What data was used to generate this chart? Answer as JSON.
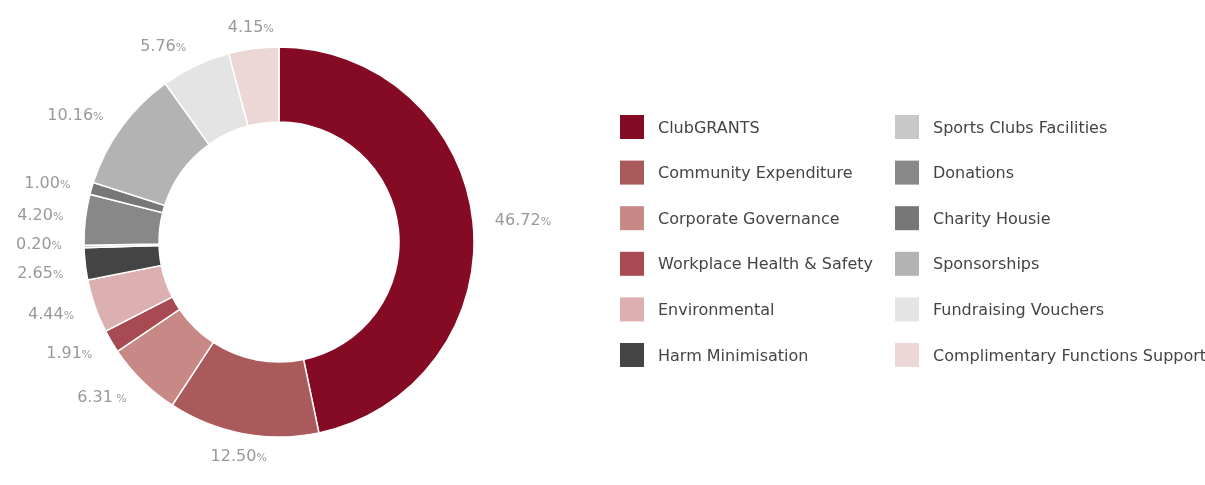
{
  "chart_data": {
    "type": "donut",
    "categories": [
      "ClubGRANTS",
      "Community Expenditure",
      "Corporate Governance",
      "Workplace Health & Safety",
      "Environmental",
      "Harm Minimisation",
      "Sports Clubs Facilities",
      "Donations",
      "Charity Housie",
      "Sponsorships",
      "Fundraising Vouchers",
      "Complimentary Functions Support"
    ],
    "values": [
      46.72,
      12.5,
      6.31,
      1.91,
      4.44,
      2.65,
      0.2,
      4.2,
      1.0,
      10.16,
      5.76,
      4.15
    ],
    "value_labels": [
      "46.72%",
      "12.50%",
      "6.31 %",
      "1.91%",
      "4.44%",
      "2.65%",
      "0.20%",
      "4.20%",
      "1.00%",
      "10.16%",
      "5.76%",
      "4.15%"
    ],
    "colors": [
      "#850a24",
      "#ab5a5c",
      "#c88886",
      "#a84a52",
      "#dcb0b0",
      "#444444",
      "#c8c8c8",
      "#888888",
      "#777777",
      "#b3b3b3",
      "#e4e4e4",
      "#ecd6d6"
    ],
    "legend": "right"
  }
}
